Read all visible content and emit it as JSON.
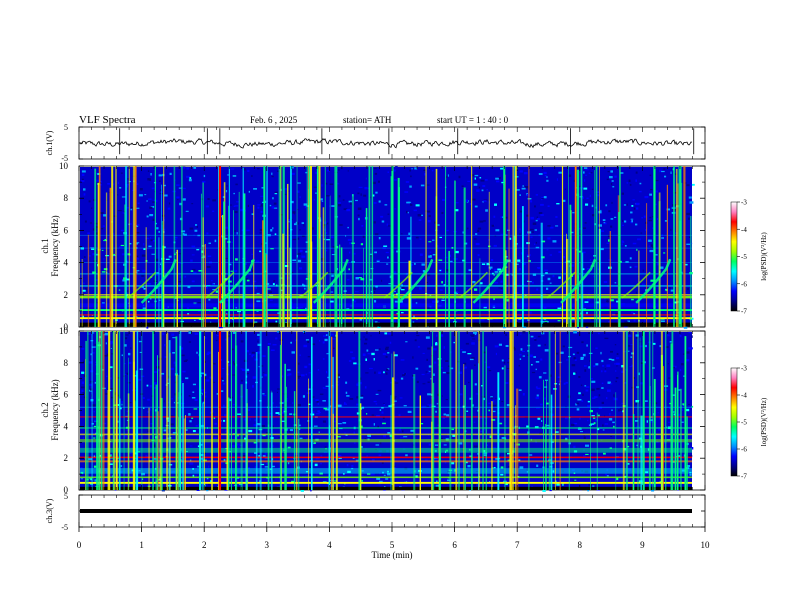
{
  "header": {
    "title": "VLF  Spectra",
    "date": "Feb. 6  , 2025",
    "station": "station= ATH",
    "start": "start  UT  =   1 : 40 : 0"
  },
  "chart_data": [
    {
      "type": "line",
      "name": "ch1-waveform",
      "ylabel": "ch.1(V)",
      "ylim": [
        -5,
        5
      ],
      "yticks": [
        "5",
        "-5"
      ]
    },
    {
      "type": "heatmap",
      "name": "ch1-spectrogram",
      "ylabel_lines": [
        "ch.1",
        "Frequency  (kHz)"
      ],
      "ylim": [
        0,
        10
      ],
      "yticks": [
        "0",
        "2",
        "4",
        "6",
        "8",
        "10"
      ],
      "whistler_starts_min": [
        1.0,
        2.25,
        3.75,
        5.1,
        6.3,
        7.7,
        8.9
      ],
      "colorbar": {
        "label": "log(PSD)(V²/Hz)",
        "ticks": [
          "-3",
          "-4",
          "-5",
          "-6",
          "-7"
        ],
        "range": [
          -7,
          -3
        ]
      }
    },
    {
      "type": "heatmap",
      "name": "ch2-spectrogram",
      "ylabel_lines": [
        "ch.2",
        "Frequency  (kHz)"
      ],
      "ylim": [
        0,
        10
      ],
      "yticks": [
        "0",
        "2",
        "4",
        "6",
        "8",
        "10"
      ],
      "colorbar": {
        "label": "log(PSD)(V²/Hz)",
        "ticks": [
          "-3",
          "-4",
          "-5",
          "-6",
          "-7"
        ],
        "range": [
          -7,
          -3
        ]
      }
    },
    {
      "type": "line",
      "name": "ch3-waveform",
      "ylabel": "ch.3(V)",
      "ylim": [
        -5,
        5
      ],
      "yticks": [
        "5",
        "-5"
      ],
      "level": 0
    }
  ],
  "xaxis": {
    "label": "Time  (min)",
    "xlim": [
      0,
      10
    ],
    "ticks": [
      "0",
      "1",
      "2",
      "3",
      "4",
      "5",
      "6",
      "7",
      "8",
      "9",
      "10"
    ]
  },
  "colormap": [
    "#000000",
    "#00008b",
    "#0000ff",
    "#00a0ff",
    "#00ffff",
    "#00ff80",
    "#80ff00",
    "#ffff00",
    "#ff8000",
    "#ff0000",
    "#ff80a0",
    "#ffffff"
  ]
}
